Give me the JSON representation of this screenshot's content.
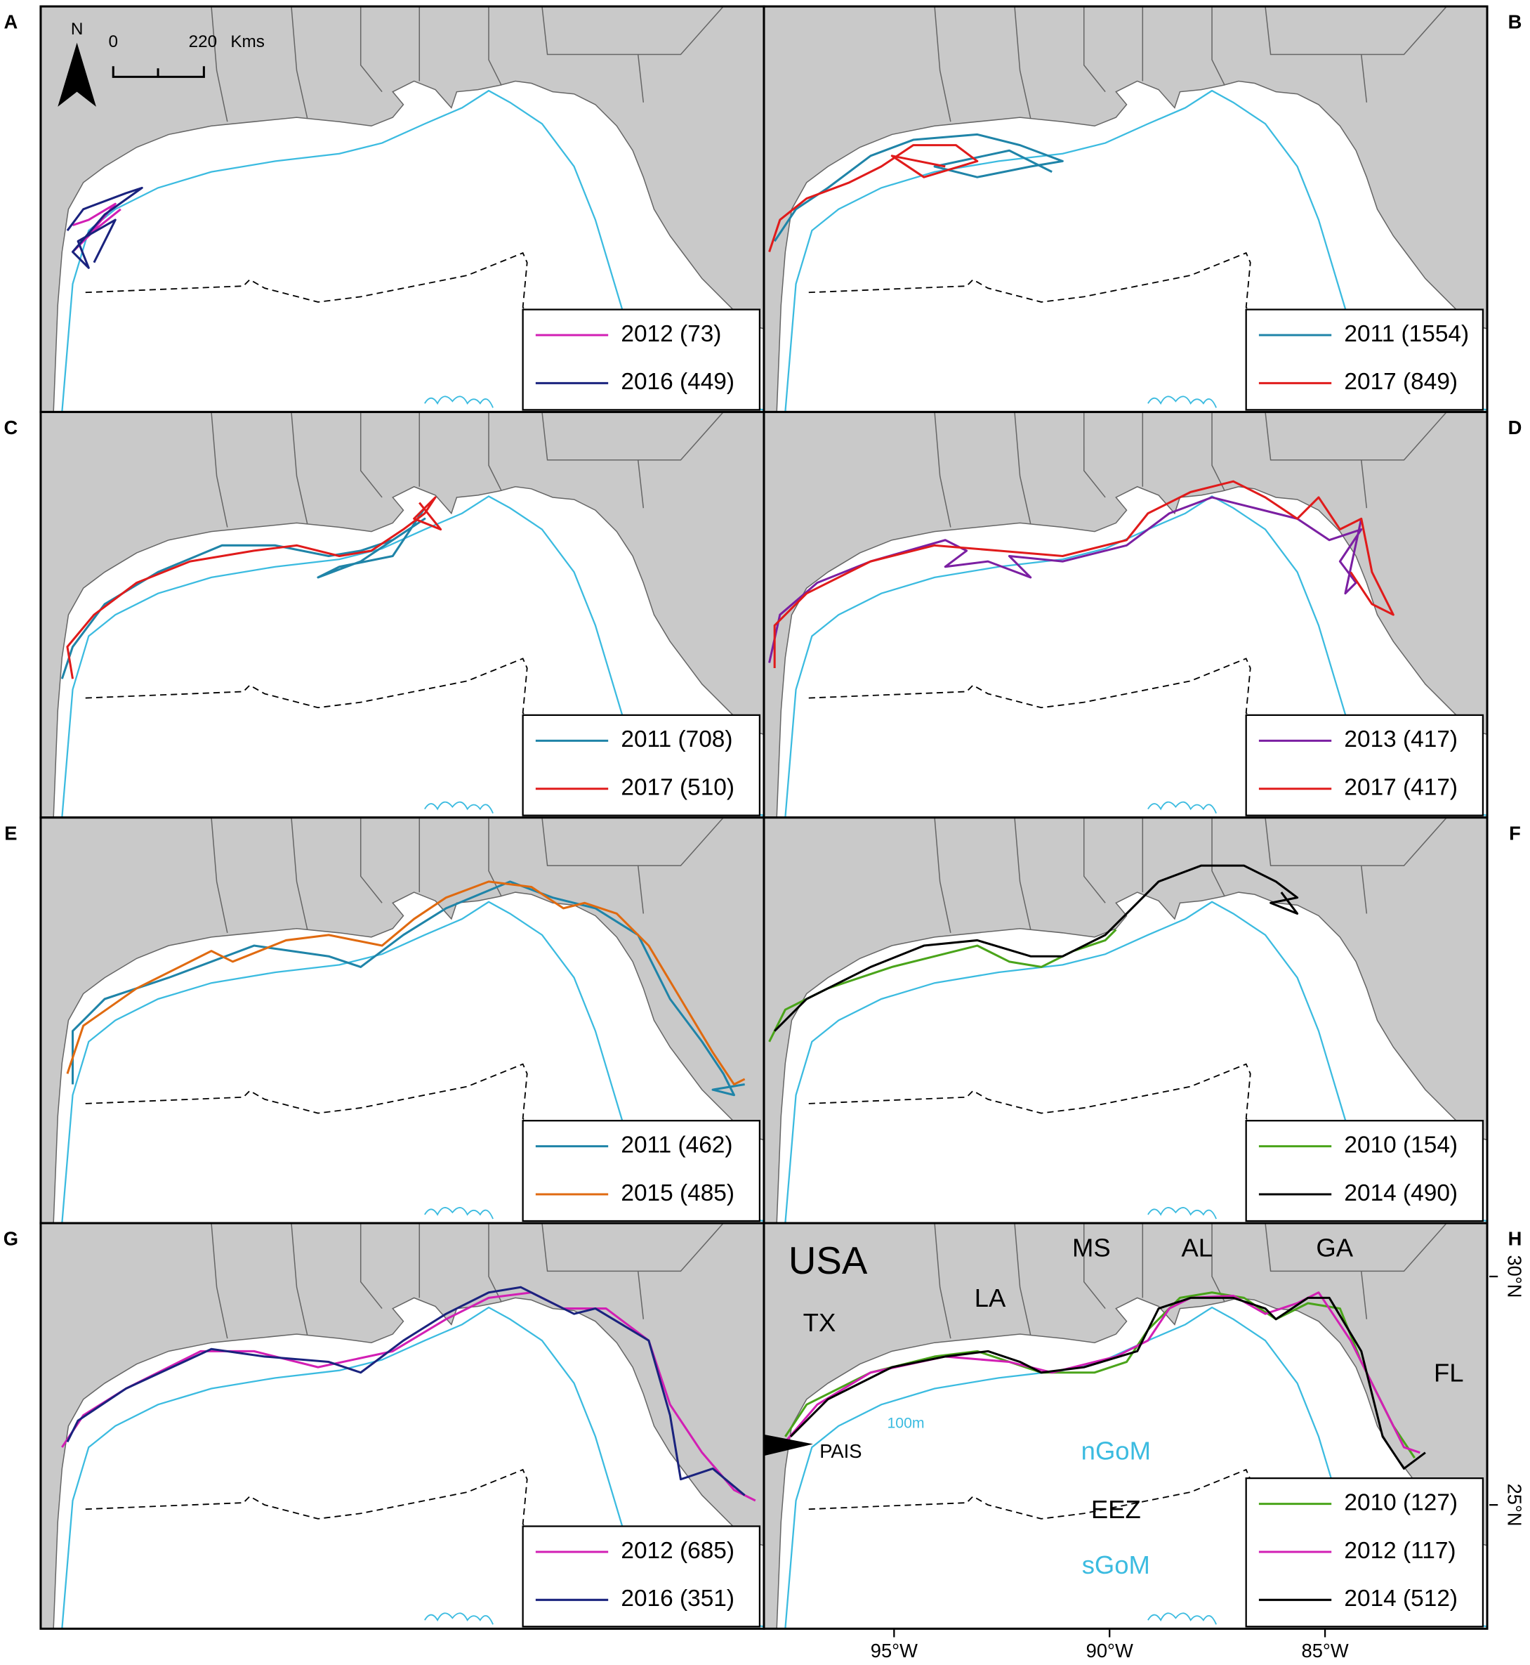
{
  "panels": [
    {
      "letter": "A",
      "legend": [
        {
          "label": "2012 (73)",
          "color": "#d21fb4"
        },
        {
          "label": "2016 (449)",
          "color": "#1a237e"
        }
      ]
    },
    {
      "letter": "B",
      "legend": [
        {
          "label": "2011 (1554)",
          "color": "#1f84a8"
        },
        {
          "label": "2017 (849)",
          "color": "#e01b1b"
        }
      ]
    },
    {
      "letter": "C",
      "legend": [
        {
          "label": "2011 (708)",
          "color": "#1f84a8"
        },
        {
          "label": "2017 (510)",
          "color": "#e01b1b"
        }
      ]
    },
    {
      "letter": "D",
      "legend": [
        {
          "label": "2013 (417)",
          "color": "#7b1fa2"
        },
        {
          "label": "2017 (417)",
          "color": "#e01b1b"
        }
      ]
    },
    {
      "letter": "E",
      "legend": [
        {
          "label": "2011 (462)",
          "color": "#1f84a8"
        },
        {
          "label": "2015 (485)",
          "color": "#e06a10"
        }
      ]
    },
    {
      "letter": "F",
      "legend": [
        {
          "label": "2010 (154)",
          "color": "#4aa41a"
        },
        {
          "label": "2014 (490)",
          "color": "#000000"
        }
      ]
    },
    {
      "letter": "G",
      "legend": [
        {
          "label": "2012 (685)",
          "color": "#d21fb4"
        },
        {
          "label": "2016 (351)",
          "color": "#1a237e"
        }
      ]
    },
    {
      "letter": "H",
      "legend": [
        {
          "label": "2010 (127)",
          "color": "#4aa41a"
        },
        {
          "label": "2012 (117)",
          "color": "#d21fb4"
        },
        {
          "label": "2014 (512)",
          "color": "#000000"
        }
      ]
    }
  ],
  "scale_bar": {
    "north": "N",
    "start": "0",
    "end": "220",
    "unit": "Kms"
  },
  "map_labels": {
    "country": "USA",
    "states": [
      "TX",
      "LA",
      "MS",
      "AL",
      "GA",
      "FL"
    ],
    "site": "PAIS",
    "isobath": "100m",
    "regions": [
      "nGoM",
      "EEZ",
      "sGoM"
    ]
  },
  "axes": {
    "longitude": [
      "95°W",
      "90°W",
      "85°W"
    ],
    "latitude": [
      "30°N",
      "25°N"
    ]
  }
}
